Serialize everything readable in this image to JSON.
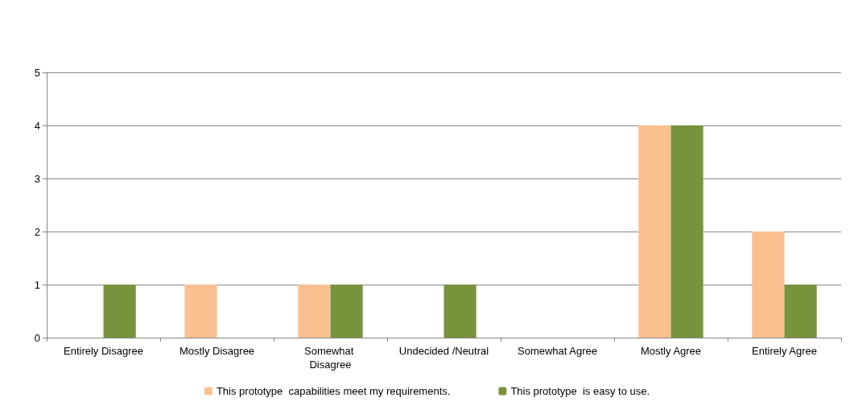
{
  "chart_data": {
    "type": "bar",
    "categories": [
      "Entirely Disagree",
      "Mostly Disagree",
      "Somewhat Disagree",
      "Undecided /Neutral",
      "Somewhat Agree",
      "Mostly Agree",
      "Entirely Agree"
    ],
    "series": [
      {
        "name": "This prototype  capabilities meet my requirements.",
        "color": "#fac090",
        "values": [
          0,
          1,
          1,
          0,
          0,
          4,
          2
        ]
      },
      {
        "name": "This prototype  is easy to use.",
        "color": "#77933c",
        "values": [
          1,
          0,
          1,
          1,
          0,
          4,
          1
        ]
      }
    ],
    "ylim": [
      0,
      5
    ],
    "yticks": [
      0,
      1,
      2,
      3,
      4,
      5
    ],
    "grid": "y",
    "legend": "bottom"
  }
}
